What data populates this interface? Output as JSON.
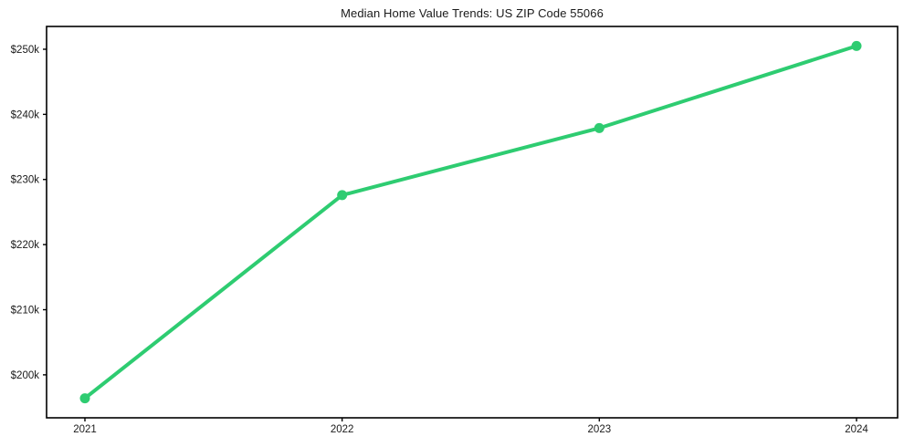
{
  "title": "Median Home Value Trends: US ZIP Code 55066",
  "chart_data": {
    "type": "line",
    "title": "Median Home Value Trends: US ZIP Code 55066",
    "x": [
      2021,
      2022,
      2023,
      2024
    ],
    "categories": [
      "2021",
      "2022",
      "2023",
      "2024"
    ],
    "series": [
      {
        "name": "Median Home Value",
        "values": [
          196400,
          227600,
          237900,
          250500
        ]
      }
    ],
    "xlabel": "",
    "ylabel": "",
    "yticks": [
      200000,
      210000,
      220000,
      230000,
      240000,
      250000
    ],
    "ytick_labels": [
      "$200k",
      "$210k",
      "$220k",
      "$230k",
      "$240k",
      "$250k"
    ],
    "ylim": [
      193400,
      253500
    ],
    "grid": false,
    "legend_position": "none",
    "line_color": "#2ecc71",
    "marker": "circle",
    "axis_color": "#000000",
    "tick_label_color": "#1a1a1a",
    "background_color": "#ffffff"
  }
}
